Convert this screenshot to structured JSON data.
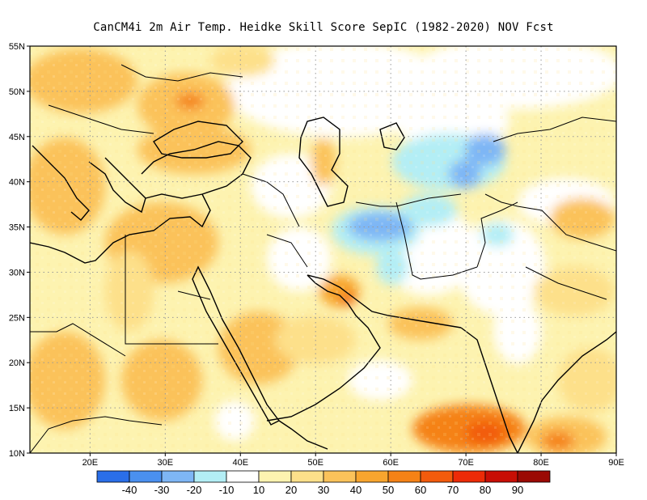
{
  "title": "CanCM4i  2m Air Temp. Heidke Skill Score SepIC (1982-2020) NOV Fcst",
  "map": {
    "lon_range": [
      12,
      90
    ],
    "lat_range": [
      10,
      55
    ],
    "lon_ticks": [
      {
        "value": 20,
        "label": "20E"
      },
      {
        "value": 30,
        "label": "30E"
      },
      {
        "value": 40,
        "label": "40E"
      },
      {
        "value": 50,
        "label": "50E"
      },
      {
        "value": 60,
        "label": "60E"
      },
      {
        "value": 70,
        "label": "70E"
      },
      {
        "value": 80,
        "label": "80E"
      },
      {
        "value": 90,
        "label": "90E"
      }
    ],
    "lat_ticks": [
      {
        "value": 10,
        "label": "10N"
      },
      {
        "value": 15,
        "label": "15N"
      },
      {
        "value": 20,
        "label": "20N"
      },
      {
        "value": 25,
        "label": "25N"
      },
      {
        "value": 30,
        "label": "30N"
      },
      {
        "value": 35,
        "label": "35N"
      },
      {
        "value": 40,
        "label": "40N"
      },
      {
        "value": 45,
        "label": "45N"
      },
      {
        "value": 50,
        "label": "50N"
      },
      {
        "value": 55,
        "label": "55N"
      }
    ],
    "grid": true
  },
  "colorbar": {
    "colors": [
      "#2a6ee8",
      "#4a90ef",
      "#7eb6f5",
      "#b3eef5",
      "#ffffff",
      "#fdf3b0",
      "#fde08a",
      "#fbc25a",
      "#f8a52e",
      "#f58216",
      "#f25b0c",
      "#ec2b07",
      "#c80e05",
      "#9b0a04"
    ],
    "labels": [
      "-40",
      "-30",
      "-20",
      "-10",
      "10",
      "20",
      "30",
      "40",
      "50",
      "60",
      "70",
      "80",
      "90"
    ]
  },
  "colors": {
    "frame": "#000000",
    "grid": "#999999",
    "coast": "#000000"
  }
}
